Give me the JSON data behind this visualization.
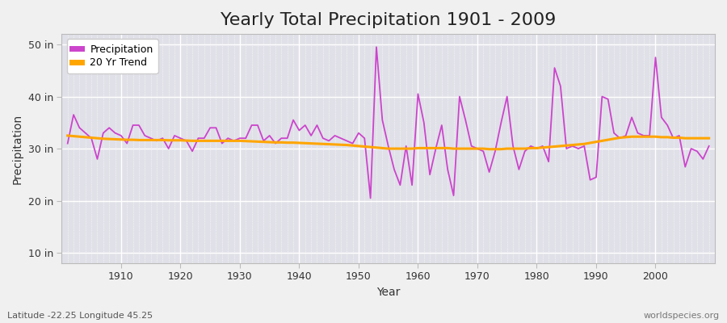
{
  "title": "Yearly Total Precipitation 1901 - 2009",
  "xlabel": "Year",
  "ylabel": "Precipitation",
  "years": [
    1901,
    1902,
    1903,
    1904,
    1905,
    1906,
    1907,
    1908,
    1909,
    1910,
    1911,
    1912,
    1913,
    1914,
    1915,
    1916,
    1917,
    1918,
    1919,
    1920,
    1921,
    1922,
    1923,
    1924,
    1925,
    1926,
    1927,
    1928,
    1929,
    1930,
    1931,
    1932,
    1933,
    1934,
    1935,
    1936,
    1937,
    1938,
    1939,
    1940,
    1941,
    1942,
    1943,
    1944,
    1945,
    1946,
    1947,
    1948,
    1949,
    1950,
    1951,
    1952,
    1953,
    1954,
    1955,
    1956,
    1957,
    1958,
    1959,
    1960,
    1961,
    1962,
    1963,
    1964,
    1965,
    1966,
    1967,
    1968,
    1969,
    1970,
    1971,
    1972,
    1973,
    1974,
    1975,
    1976,
    1977,
    1978,
    1979,
    1980,
    1981,
    1982,
    1983,
    1984,
    1985,
    1986,
    1987,
    1988,
    1989,
    1990,
    1991,
    1992,
    1993,
    1994,
    1995,
    1996,
    1997,
    1998,
    1999,
    2000,
    2001,
    2002,
    2003,
    2004,
    2005,
    2006,
    2007,
    2008,
    2009
  ],
  "precip": [
    31.0,
    36.5,
    34.0,
    33.0,
    32.0,
    28.0,
    33.0,
    34.0,
    33.0,
    32.5,
    31.0,
    34.5,
    34.5,
    32.5,
    32.0,
    31.5,
    32.0,
    30.0,
    32.5,
    32.0,
    31.5,
    29.5,
    32.0,
    32.0,
    34.0,
    34.0,
    31.0,
    32.0,
    31.5,
    32.0,
    32.0,
    34.5,
    34.5,
    31.5,
    32.5,
    31.0,
    32.0,
    32.0,
    35.5,
    33.5,
    34.5,
    32.5,
    34.5,
    32.0,
    31.5,
    32.5,
    32.0,
    31.5,
    31.0,
    33.0,
    32.0,
    20.5,
    49.5,
    35.5,
    30.5,
    26.0,
    23.0,
    30.5,
    23.0,
    40.5,
    35.0,
    25.0,
    30.0,
    34.5,
    26.0,
    21.0,
    40.0,
    35.5,
    30.5,
    30.0,
    29.5,
    25.5,
    29.5,
    35.0,
    40.0,
    30.5,
    26.0,
    29.5,
    30.5,
    30.0,
    30.5,
    27.5,
    45.5,
    42.0,
    30.0,
    30.5,
    30.0,
    30.5,
    24.0,
    24.5,
    40.0,
    39.5,
    33.0,
    32.0,
    32.5,
    36.0,
    33.0,
    32.5,
    32.5,
    47.5,
    36.0,
    34.5,
    32.0,
    32.5,
    26.5,
    30.0,
    29.5,
    28.0,
    30.5
  ],
  "trend": [
    32.5,
    32.4,
    32.3,
    32.2,
    32.1,
    32.0,
    31.9,
    31.85,
    31.8,
    31.75,
    31.7,
    31.7,
    31.65,
    31.65,
    31.65,
    31.65,
    31.65,
    31.6,
    31.6,
    31.6,
    31.55,
    31.5,
    31.5,
    31.5,
    31.5,
    31.5,
    31.5,
    31.5,
    31.5,
    31.5,
    31.45,
    31.4,
    31.35,
    31.3,
    31.25,
    31.2,
    31.2,
    31.15,
    31.15,
    31.1,
    31.05,
    31.0,
    30.95,
    30.9,
    30.85,
    30.8,
    30.75,
    30.7,
    30.6,
    30.5,
    30.4,
    30.3,
    30.2,
    30.1,
    30.0,
    30.0,
    30.0,
    30.0,
    30.0,
    30.1,
    30.1,
    30.1,
    30.1,
    30.1,
    30.1,
    30.0,
    30.0,
    30.0,
    30.0,
    30.0,
    30.0,
    29.9,
    29.9,
    29.9,
    30.0,
    30.0,
    30.0,
    30.0,
    30.1,
    30.1,
    30.2,
    30.3,
    30.4,
    30.5,
    30.6,
    30.7,
    30.8,
    30.9,
    31.1,
    31.3,
    31.5,
    31.7,
    31.9,
    32.1,
    32.2,
    32.3,
    32.3,
    32.3,
    32.3,
    32.3,
    32.2,
    32.2,
    32.1,
    32.1,
    32.0,
    32.0,
    32.0,
    32.0,
    32.0
  ],
  "precip_color": "#CC44CC",
  "trend_color": "#FFA500",
  "fig_bg_color": "#F0F0F0",
  "plot_bg_color": "#E0E0E8",
  "grid_color": "#FFFFFF",
  "ytick_labels": [
    "10 in",
    "20 in",
    "30 in",
    "40 in",
    "50 in"
  ],
  "ytick_vals": [
    10,
    20,
    30,
    40,
    50
  ],
  "ylim": [
    8,
    52
  ],
  "xlim": [
    1900,
    2010
  ],
  "xtick_vals": [
    1910,
    1920,
    1930,
    1940,
    1950,
    1960,
    1970,
    1980,
    1990,
    2000
  ],
  "legend_precip": "Precipitation",
  "legend_trend": "20 Yr Trend",
  "footnote_left": "Latitude -22.25 Longitude 45.25",
  "footnote_right": "worldspecies.org",
  "title_fontsize": 16,
  "axis_label_fontsize": 10,
  "tick_fontsize": 9,
  "footnote_fontsize": 8
}
